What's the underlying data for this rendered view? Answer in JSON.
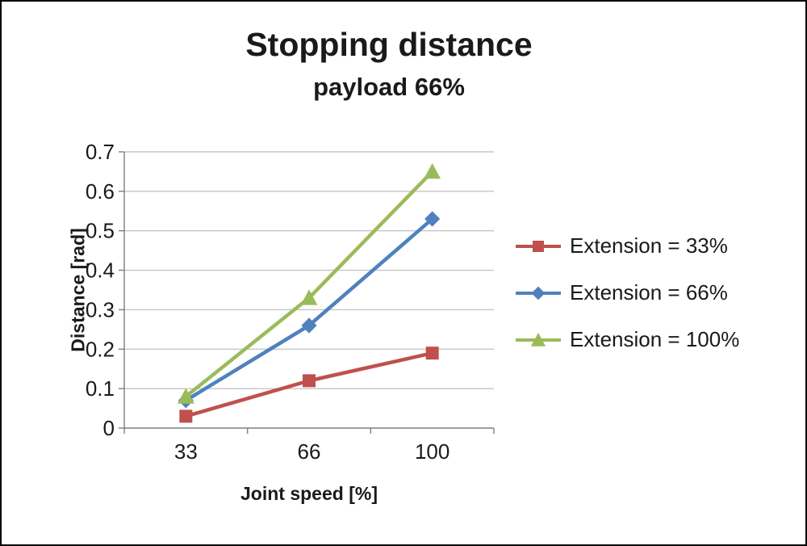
{
  "chart_data": {
    "type": "line",
    "title": "Stopping distance",
    "subtitle": "payload 66%",
    "xlabel": "Joint speed [%]",
    "ylabel": "Distance [rad]",
    "categories": [
      "33",
      "66",
      "100"
    ],
    "ylim": [
      0,
      0.7
    ],
    "ytick_step": 0.1,
    "grid": true,
    "legend_position": "right",
    "colors": {
      "gridline": "#c6c6c6",
      "axis": "#7f7f7f",
      "text": "#1a1a1a"
    },
    "series": [
      {
        "name": "Extension = 33%",
        "marker": "square",
        "color": "#c0504d",
        "values": [
          0.03,
          0.12,
          0.19
        ]
      },
      {
        "name": "Extension = 66%",
        "marker": "diamond",
        "color": "#4f81bd",
        "values": [
          0.07,
          0.26,
          0.53
        ]
      },
      {
        "name": "Extension = 100%",
        "marker": "triangle",
        "color": "#9bbb59",
        "values": [
          0.08,
          0.33,
          0.65
        ]
      }
    ]
  }
}
